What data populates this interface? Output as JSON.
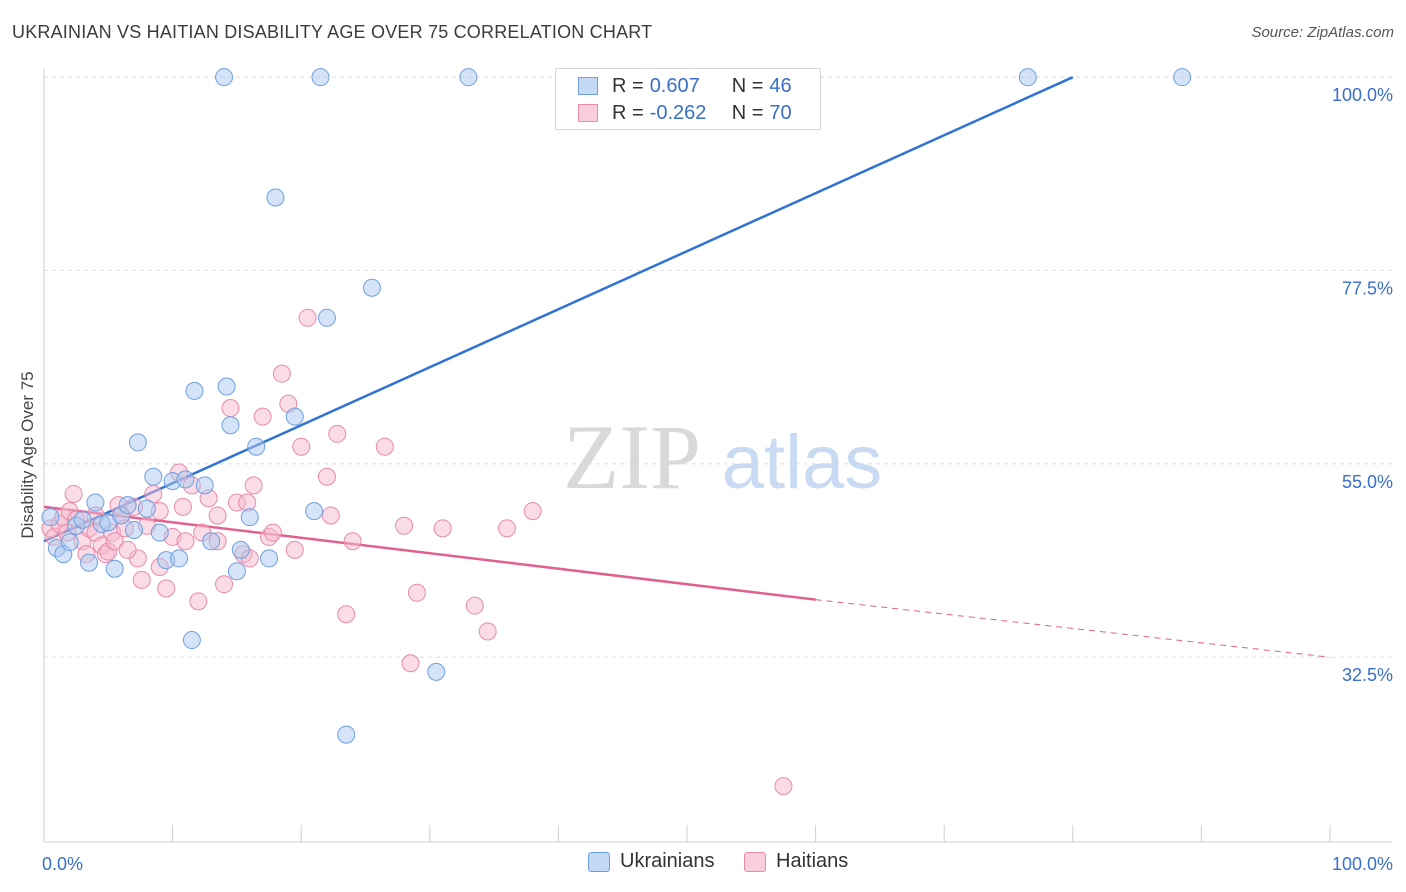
{
  "title": "UKRAINIAN VS HAITIAN DISABILITY AGE OVER 75 CORRELATION CHART",
  "source": "Source: ZipAtlas.com",
  "watermark": {
    "zip": "ZIP",
    "atlas": "atlas"
  },
  "colors": {
    "ukrainians_fill": "#a9c8f0",
    "ukrainians_stroke": "#6f9fe0",
    "ukrainians_line": "#2f73d4",
    "haitians_fill": "#f6b9cd",
    "haitians_stroke": "#e98aab",
    "haitians_line": "#e0608f",
    "tick_label": "#3a6fc9",
    "grid": "#dddddd"
  },
  "legend_top": [
    {
      "name": "Ukrainians",
      "r_label": "R =",
      "r_value": "0.607",
      "n_label": "N =",
      "n_value": "46"
    },
    {
      "name": "Haitians",
      "r_label": "R =",
      "r_value": "-0.262",
      "n_label": "N =",
      "n_value": "70"
    }
  ],
  "chart_data": {
    "type": "scatter",
    "title": "UKRAINIAN VS HAITIAN DISABILITY AGE OVER 75 CORRELATION CHART",
    "xlabel": "",
    "ylabel": "Disability Age Over 75",
    "xlim": [
      0,
      100
    ],
    "ylim": [
      11,
      102
    ],
    "x_tick_labels": [
      "0.0%",
      "100.0%"
    ],
    "y_ticks": [
      32.5,
      55.0,
      77.5,
      100.0
    ],
    "y_tick_labels": [
      "32.5%",
      "55.0%",
      "77.5%",
      "100.0%"
    ],
    "grid": "horizontal dashed",
    "legend_position": "top-center",
    "series": [
      {
        "name": "Ukrainians",
        "points": [
          [
            0.5,
            48.8
          ],
          [
            1.0,
            45.2
          ],
          [
            1.5,
            44.5
          ],
          [
            2.0,
            45.9
          ],
          [
            2.5,
            47.8
          ],
          [
            3.0,
            48.5
          ],
          [
            3.5,
            43.5
          ],
          [
            4.0,
            50.5
          ],
          [
            4.5,
            48.0
          ],
          [
            5.0,
            48.2
          ],
          [
            5.5,
            42.8
          ],
          [
            6.0,
            49.0
          ],
          [
            6.5,
            50.2
          ],
          [
            7.0,
            47.3
          ],
          [
            7.3,
            57.5
          ],
          [
            8.0,
            49.8
          ],
          [
            8.5,
            53.5
          ],
          [
            9.0,
            47.0
          ],
          [
            9.5,
            43.8
          ],
          [
            10.0,
            53.0
          ],
          [
            10.5,
            44.0
          ],
          [
            11.0,
            53.2
          ],
          [
            11.5,
            34.5
          ],
          [
            11.7,
            63.5
          ],
          [
            12.5,
            52.5
          ],
          [
            13.0,
            46.0
          ],
          [
            14.0,
            100.0
          ],
          [
            14.2,
            64.0
          ],
          [
            14.5,
            59.5
          ],
          [
            15.0,
            42.5
          ],
          [
            15.3,
            45.0
          ],
          [
            16.0,
            48.8
          ],
          [
            16.5,
            57.0
          ],
          [
            17.5,
            44.0
          ],
          [
            18.0,
            86.0
          ],
          [
            19.5,
            60.5
          ],
          [
            21.0,
            49.5
          ],
          [
            21.5,
            100.0
          ],
          [
            22.0,
            72.0
          ],
          [
            23.5,
            23.5
          ],
          [
            25.5,
            75.5
          ],
          [
            30.5,
            30.8
          ],
          [
            33.0,
            100.0
          ],
          [
            55.5,
            100.0
          ],
          [
            76.5,
            100.0
          ],
          [
            88.5,
            100.0
          ]
        ]
      },
      {
        "name": "Haitians",
        "points": [
          [
            0.5,
            47.5
          ],
          [
            0.8,
            46.5
          ],
          [
            1.2,
            48.0
          ],
          [
            1.5,
            48.8
          ],
          [
            2.0,
            49.5
          ],
          [
            2.3,
            51.5
          ],
          [
            2.5,
            48.5
          ],
          [
            3.0,
            46.0
          ],
          [
            3.3,
            44.5
          ],
          [
            3.5,
            47.5
          ],
          [
            4.0,
            47.0
          ],
          [
            4.5,
            45.5
          ],
          [
            4.8,
            44.5
          ],
          [
            5.0,
            44.8
          ],
          [
            5.3,
            47.0
          ],
          [
            5.5,
            46.0
          ],
          [
            5.8,
            50.2
          ],
          [
            6.0,
            49.0
          ],
          [
            6.3,
            47.5
          ],
          [
            7.0,
            50.0
          ],
          [
            7.3,
            44.0
          ],
          [
            7.6,
            41.5
          ],
          [
            8.0,
            47.8
          ],
          [
            8.5,
            51.5
          ],
          [
            9.0,
            43.0
          ],
          [
            9.5,
            40.5
          ],
          [
            10.0,
            46.5
          ],
          [
            10.5,
            54.0
          ],
          [
            10.8,
            50.0
          ],
          [
            11.0,
            46.0
          ],
          [
            11.5,
            52.5
          ],
          [
            12.0,
            39.0
          ],
          [
            12.3,
            47.0
          ],
          [
            12.8,
            51.0
          ],
          [
            13.5,
            46.0
          ],
          [
            14.0,
            41.0
          ],
          [
            14.5,
            61.5
          ],
          [
            15.0,
            50.5
          ],
          [
            15.5,
            44.5
          ],
          [
            15.8,
            50.5
          ],
          [
            16.0,
            44.0
          ],
          [
            16.3,
            52.5
          ],
          [
            17.0,
            60.5
          ],
          [
            17.5,
            46.5
          ],
          [
            17.8,
            47.0
          ],
          [
            18.5,
            65.5
          ],
          [
            19.0,
            62.0
          ],
          [
            19.5,
            45.0
          ],
          [
            20.0,
            57.0
          ],
          [
            20.5,
            72.0
          ],
          [
            22.0,
            53.5
          ],
          [
            22.3,
            49.0
          ],
          [
            22.8,
            58.5
          ],
          [
            23.5,
            37.5
          ],
          [
            26.5,
            57.0
          ],
          [
            28.0,
            47.8
          ],
          [
            29.0,
            40.0
          ],
          [
            31.0,
            47.5
          ],
          [
            33.5,
            38.5
          ],
          [
            34.5,
            35.5
          ],
          [
            36.0,
            47.5
          ],
          [
            38.0,
            49.5
          ],
          [
            28.5,
            31.8
          ],
          [
            57.5,
            17.5
          ],
          [
            13.5,
            49.0
          ],
          [
            9.0,
            49.5
          ],
          [
            4.0,
            49.0
          ],
          [
            1.8,
            47.0
          ],
          [
            6.5,
            45.0
          ],
          [
            24.0,
            46.0
          ]
        ]
      }
    ],
    "trendlines": [
      {
        "series": "Ukrainians",
        "x0": 0,
        "y0": 46.0,
        "x1": 80,
        "y1": 100.0,
        "style": "solid"
      },
      {
        "series": "Haitians",
        "x0": 0,
        "y0": 50.0,
        "x1": 60,
        "y1": 39.2,
        "style": "solid"
      },
      {
        "series": "Haitians",
        "x0": 60,
        "y0": 39.2,
        "x1": 100,
        "y1": 32.5,
        "style": "dashed"
      }
    ]
  },
  "legend_bottom": [
    {
      "name": "Ukrainians"
    },
    {
      "name": "Haitians"
    }
  ]
}
